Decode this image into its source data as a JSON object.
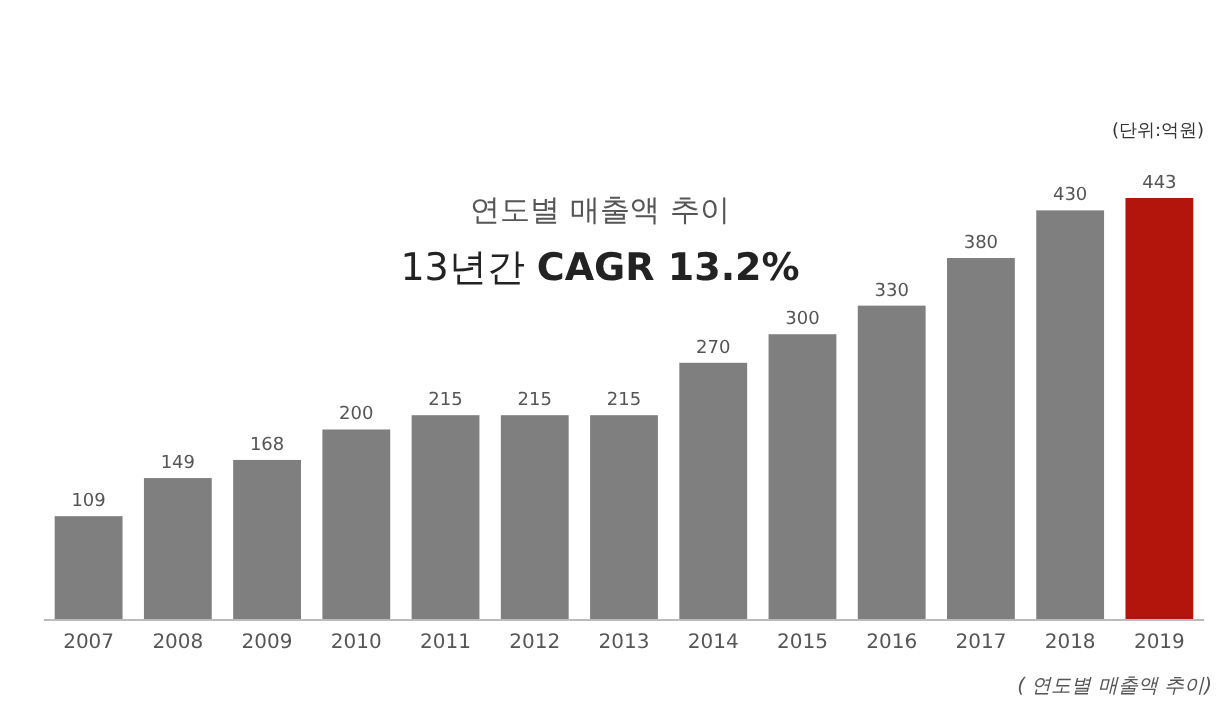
{
  "chart_data": {
    "type": "bar",
    "title": "연도별 매출액 추이",
    "subtitle": "13년간 **CAGR 13.2%**",
    "categories": [
      "2007",
      "2008",
      "2009",
      "2010",
      "2011",
      "2012",
      "2013",
      "2014",
      "2015",
      "2016",
      "2017",
      "2018",
      "2019"
    ],
    "values": [
      109,
      149,
      168,
      200,
      215,
      215,
      215,
      270,
      300,
      330,
      380,
      430,
      443
    ],
    "colors": [
      "#7f7f7f",
      "#7f7f7f",
      "#7f7f7f",
      "#7f7f7f",
      "#7f7f7f",
      "#7f7f7f",
      "#7f7f7f",
      "#7f7f7f",
      "#7f7f7f",
      "#7f7f7f",
      "#7f7f7f",
      "#7f7f7f",
      "#b3150c"
    ],
    "data_labels": true,
    "annotations": [
      "(단위:억원)",
      "( 연도별 매출액 추이)"
    ]
  }
}
